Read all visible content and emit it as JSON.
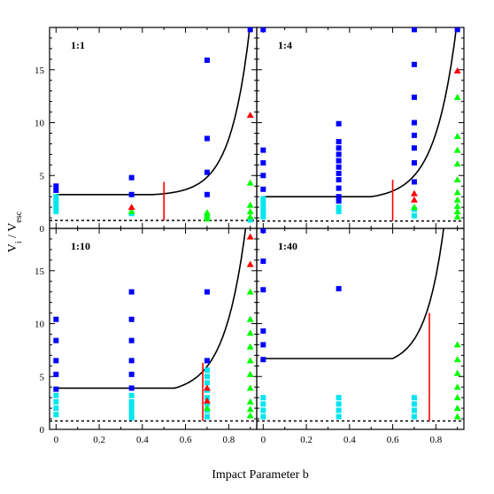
{
  "chart_data": {
    "type": "scatter",
    "xlabel": "Impact Parameter b",
    "ylabel": {
      "main": "V",
      "sub1": "i",
      "mid": " / V",
      "sub2": "esc"
    },
    "xlim": [
      -0.03,
      0.93
    ],
    "ylim": [
      0,
      19
    ],
    "xticks": [
      0,
      0.2,
      0.4,
      0.6,
      0.8
    ],
    "xtick_labels": [
      "0",
      "0.2",
      "0.4",
      "0.6",
      "0.8"
    ],
    "yticks": [
      0,
      5,
      10,
      15
    ],
    "ytick_labels": [
      "0",
      "5",
      "10",
      "15"
    ],
    "colors": {
      "blue": "#0000ff",
      "cyan": "#00e5ee",
      "green": "#00ff00",
      "red": "#ff0000",
      "curve": "#000000"
    },
    "panels": [
      {
        "label": "1:1",
        "escape_floor": 0.75,
        "curve": {
          "base": 3.2,
          "knee": 0.45,
          "rise": 12,
          "scale": 0.09
        },
        "red_line": {
          "x": 0.5,
          "y0": 0.75,
          "y1": 4.4
        },
        "blue_squares": [
          [
            0,
            4.0
          ],
          [
            0,
            3.6
          ],
          [
            0.35,
            4.8
          ],
          [
            0.35,
            3.2
          ],
          [
            0.7,
            15.9
          ],
          [
            0.7,
            8.5
          ],
          [
            0.7,
            5.3
          ],
          [
            0.7,
            3.2
          ],
          [
            0.9,
            18.8
          ]
        ],
        "cyan_squares": [
          [
            0,
            3.0
          ],
          [
            0,
            2.6
          ],
          [
            0,
            2.3
          ],
          [
            0,
            1.9
          ],
          [
            0,
            1.6
          ],
          [
            0.35,
            1.4
          ],
          [
            0.7,
            1.0
          ],
          [
            0.9,
            0.8
          ]
        ],
        "green_triangles": [
          [
            0.35,
            1.6
          ],
          [
            0.7,
            1.5
          ],
          [
            0.7,
            1.2
          ],
          [
            0.7,
            0.9
          ],
          [
            0.9,
            4.3
          ],
          [
            0.9,
            2.2
          ],
          [
            0.9,
            1.6
          ],
          [
            0.9,
            1.1
          ]
        ],
        "red_triangles": [
          [
            0.35,
            2.0
          ],
          [
            0.9,
            10.7
          ]
        ]
      },
      {
        "label": "1:4",
        "escape_floor": 0.7,
        "curve": {
          "base": 3.0,
          "knee": 0.5,
          "rise": 14,
          "scale": 0.1
        },
        "red_line": {
          "x": 0.6,
          "y0": 0.7,
          "y1": 4.6
        },
        "blue_squares": [
          [
            0,
            18.8
          ],
          [
            0,
            7.4
          ],
          [
            0,
            6.2
          ],
          [
            0,
            5.0
          ],
          [
            0,
            3.7
          ],
          [
            0.35,
            9.9
          ],
          [
            0.35,
            8.2
          ],
          [
            0.35,
            7.6
          ],
          [
            0.35,
            7.0
          ],
          [
            0.35,
            6.4
          ],
          [
            0.35,
            5.8
          ],
          [
            0.35,
            5.2
          ],
          [
            0.35,
            4.6
          ],
          [
            0.35,
            3.8
          ],
          [
            0.35,
            3.0
          ],
          [
            0.35,
            2.6
          ],
          [
            0.7,
            18.8
          ],
          [
            0.7,
            15.5
          ],
          [
            0.7,
            12.4
          ],
          [
            0.7,
            10.0
          ],
          [
            0.7,
            8.8
          ],
          [
            0.7,
            7.6
          ],
          [
            0.7,
            6.2
          ],
          [
            0.7,
            4.4
          ],
          [
            0.9,
            18.8
          ]
        ],
        "cyan_squares": [
          [
            0,
            2.8
          ],
          [
            0,
            2.3
          ],
          [
            0,
            1.9
          ],
          [
            0,
            1.5
          ],
          [
            0,
            1.1
          ],
          [
            0.35,
            2.0
          ],
          [
            0.35,
            1.6
          ],
          [
            0.7,
            1.8
          ],
          [
            0.7,
            1.2
          ]
        ],
        "green_triangles": [
          [
            0.7,
            2.0
          ],
          [
            0.9,
            12.4
          ],
          [
            0.9,
            8.7
          ],
          [
            0.9,
            7.4
          ],
          [
            0.9,
            6.1
          ],
          [
            0.9,
            4.6
          ],
          [
            0.9,
            3.4
          ],
          [
            0.9,
            2.7
          ],
          [
            0.9,
            2.1
          ],
          [
            0.9,
            1.6
          ],
          [
            0.9,
            1.1
          ]
        ],
        "red_triangles": [
          [
            0.7,
            3.3
          ],
          [
            0.7,
            2.7
          ],
          [
            0.9,
            14.9
          ]
        ]
      },
      {
        "label": "1:10",
        "escape_floor": 0.8,
        "curve": {
          "base": 3.9,
          "knee": 0.55,
          "rise": 18,
          "scale": 0.1
        },
        "red_line": {
          "x": 0.68,
          "y0": 0.8,
          "y1": 6.3
        },
        "blue_squares": [
          [
            0,
            10.4
          ],
          [
            0,
            8.4
          ],
          [
            0,
            6.5
          ],
          [
            0,
            5.2
          ],
          [
            0,
            3.8
          ],
          [
            0.35,
            13.0
          ],
          [
            0.35,
            10.4
          ],
          [
            0.35,
            8.4
          ],
          [
            0.35,
            6.5
          ],
          [
            0.35,
            5.2
          ],
          [
            0.35,
            3.9
          ],
          [
            0.7,
            13.0
          ],
          [
            0.7,
            6.5
          ]
        ],
        "cyan_squares": [
          [
            0,
            3.2
          ],
          [
            0,
            2.6
          ],
          [
            0,
            2.0
          ],
          [
            0,
            1.4
          ],
          [
            0.35,
            3.2
          ],
          [
            0.35,
            2.6
          ],
          [
            0.35,
            2.1
          ],
          [
            0.35,
            1.6
          ],
          [
            0.35,
            1.1
          ],
          [
            0.7,
            5.6
          ],
          [
            0.7,
            5.0
          ],
          [
            0.7,
            4.4
          ],
          [
            0.7,
            3.7
          ],
          [
            0.7,
            3.0
          ],
          [
            0.7,
            2.4
          ],
          [
            0.7,
            1.8
          ],
          [
            0.7,
            1.2
          ]
        ],
        "green_triangles": [
          [
            0.7,
            2.0
          ],
          [
            0.9,
            13.0
          ],
          [
            0.9,
            10.4
          ],
          [
            0.9,
            9.1
          ],
          [
            0.9,
            7.8
          ],
          [
            0.9,
            6.5
          ],
          [
            0.9,
            5.2
          ],
          [
            0.9,
            3.9
          ],
          [
            0.9,
            2.6
          ],
          [
            0.9,
            1.9
          ],
          [
            0.9,
            1.3
          ]
        ],
        "red_triangles": [
          [
            0.7,
            3.9
          ],
          [
            0.7,
            2.7
          ],
          [
            0.9,
            18.2
          ],
          [
            0.9,
            15.6
          ]
        ]
      },
      {
        "label": "1:40",
        "escape_floor": 0.8,
        "curve": {
          "base": 6.7,
          "knee": 0.6,
          "rise": 30,
          "scale": 0.085
        },
        "red_line": {
          "x": 0.77,
          "y0": 0.8,
          "y1": 11.0
        },
        "blue_squares": [
          [
            0,
            18.8
          ],
          [
            0,
            15.9
          ],
          [
            0,
            13.2
          ],
          [
            0,
            9.3
          ],
          [
            0,
            8.0
          ],
          [
            0,
            6.6
          ],
          [
            0.35,
            13.3
          ]
        ],
        "cyan_squares": [
          [
            0,
            3.0
          ],
          [
            0,
            2.4
          ],
          [
            0,
            1.8
          ],
          [
            0,
            1.2
          ],
          [
            0.35,
            3.0
          ],
          [
            0.35,
            2.4
          ],
          [
            0.35,
            1.8
          ],
          [
            0.35,
            1.2
          ],
          [
            0.7,
            3.0
          ],
          [
            0.7,
            2.4
          ],
          [
            0.7,
            1.8
          ],
          [
            0.7,
            1.2
          ]
        ],
        "green_triangles": [
          [
            0.9,
            8.0
          ],
          [
            0.9,
            6.6
          ],
          [
            0.9,
            5.3
          ],
          [
            0.9,
            4.0
          ],
          [
            0.9,
            3.0
          ],
          [
            0.9,
            2.0
          ],
          [
            0.9,
            1.2
          ]
        ],
        "red_triangles": []
      }
    ]
  }
}
